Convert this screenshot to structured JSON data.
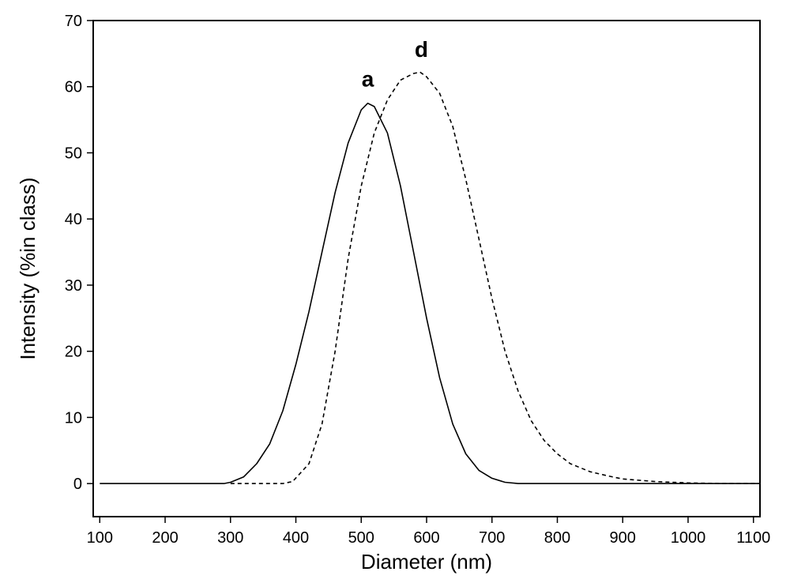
{
  "chart_data": {
    "type": "line",
    "title": "",
    "xlabel": "Diameter (nm)",
    "ylabel": "Intensity (%in class)",
    "xlim": [
      90,
      1110
    ],
    "ylim": [
      -5,
      70
    ],
    "xticks": [
      100,
      200,
      300,
      400,
      500,
      600,
      700,
      800,
      900,
      1000,
      1100
    ],
    "yticks": [
      0,
      10,
      20,
      30,
      40,
      50,
      60,
      70
    ],
    "grid": false,
    "legend": "none",
    "series": [
      {
        "name": "a",
        "style": "solid",
        "color": "#000000",
        "points": [
          [
            100,
            0
          ],
          [
            200,
            0
          ],
          [
            290,
            0
          ],
          [
            300,
            0.2
          ],
          [
            320,
            1
          ],
          [
            340,
            3
          ],
          [
            360,
            6
          ],
          [
            380,
            11
          ],
          [
            400,
            18
          ],
          [
            420,
            26
          ],
          [
            440,
            35
          ],
          [
            460,
            44
          ],
          [
            480,
            51.5
          ],
          [
            500,
            56.5
          ],
          [
            510,
            57.5
          ],
          [
            520,
            57
          ],
          [
            540,
            53
          ],
          [
            560,
            45
          ],
          [
            580,
            35
          ],
          [
            600,
            25
          ],
          [
            620,
            16
          ],
          [
            640,
            9
          ],
          [
            660,
            4.5
          ],
          [
            680,
            2
          ],
          [
            700,
            0.8
          ],
          [
            720,
            0.2
          ],
          [
            740,
            0
          ],
          [
            800,
            0
          ],
          [
            900,
            0
          ],
          [
            1000,
            0
          ],
          [
            1110,
            0
          ]
        ]
      },
      {
        "name": "d",
        "style": "dashed",
        "color": "#000000",
        "points": [
          [
            300,
            0
          ],
          [
            380,
            0
          ],
          [
            395,
            0.3
          ],
          [
            420,
            3
          ],
          [
            440,
            9
          ],
          [
            460,
            20
          ],
          [
            480,
            34
          ],
          [
            500,
            45
          ],
          [
            520,
            53
          ],
          [
            540,
            58
          ],
          [
            560,
            61
          ],
          [
            580,
            62
          ],
          [
            590,
            62.2
          ],
          [
            600,
            61.5
          ],
          [
            620,
            59
          ],
          [
            640,
            54
          ],
          [
            660,
            46
          ],
          [
            680,
            37
          ],
          [
            700,
            28
          ],
          [
            720,
            20
          ],
          [
            740,
            14
          ],
          [
            760,
            9.5
          ],
          [
            780,
            6.5
          ],
          [
            800,
            4.5
          ],
          [
            820,
            3
          ],
          [
            850,
            1.8
          ],
          [
            880,
            1.1
          ],
          [
            900,
            0.7
          ],
          [
            950,
            0.3
          ],
          [
            1000,
            0.1
          ],
          [
            1050,
            0
          ],
          [
            1110,
            0
          ]
        ]
      }
    ],
    "annotations": [
      {
        "text": "a",
        "x": 510,
        "y": 60
      },
      {
        "text": "d",
        "x": 592,
        "y": 64.5
      }
    ]
  }
}
